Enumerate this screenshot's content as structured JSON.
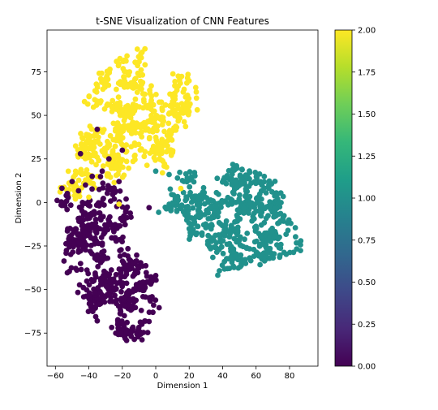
{
  "chart_data": {
    "type": "scatter",
    "title": "t-SNE Visualization of CNN Features",
    "xlabel": "Dimension 1",
    "ylabel": "Dimension 2",
    "xlim": [
      -65,
      97
    ],
    "ylim": [
      -94,
      99
    ],
    "xticks": [
      -60,
      -40,
      -20,
      0,
      20,
      40,
      60,
      80
    ],
    "yticks": [
      -75,
      -50,
      -25,
      0,
      25,
      50,
      75
    ],
    "grid": false,
    "legend": "none",
    "colormap": "viridis",
    "colorbar": {
      "range": [
        0.0,
        2.0
      ],
      "ticks": [
        "0.00",
        "0.25",
        "0.50",
        "0.75",
        "1.00",
        "1.25",
        "1.50",
        "1.75",
        "2.00"
      ]
    },
    "point_color_range": [
      0,
      2
    ],
    "clusters": [
      {
        "value": 2,
        "color": "#fde725",
        "count": 620,
        "anchor_points": [
          [
            -10,
            88
          ],
          [
            -20,
            82
          ],
          [
            -25,
            72
          ],
          [
            -10,
            70
          ],
          [
            -5,
            65
          ],
          [
            -15,
            62
          ],
          [
            -35,
            66
          ],
          [
            -40,
            58
          ],
          [
            -30,
            55
          ],
          [
            -22,
            52
          ],
          [
            -12,
            55
          ],
          [
            0,
            60
          ],
          [
            10,
            55
          ],
          [
            15,
            65
          ],
          [
            20,
            72
          ],
          [
            25,
            65
          ],
          [
            20,
            55
          ],
          [
            18,
            45
          ],
          [
            10,
            42
          ],
          [
            5,
            35
          ],
          [
            0,
            45
          ],
          [
            -5,
            38
          ],
          [
            -15,
            40
          ],
          [
            -25,
            42
          ],
          [
            -35,
            45
          ],
          [
            -42,
            38
          ],
          [
            -48,
            32
          ],
          [
            -45,
            22
          ],
          [
            -38,
            28
          ],
          [
            -30,
            32
          ],
          [
            -25,
            22
          ],
          [
            -20,
            18
          ],
          [
            -10,
            30
          ],
          [
            -5,
            22
          ],
          [
            5,
            20
          ],
          [
            10,
            28
          ],
          [
            -50,
            5
          ],
          [
            -55,
            8
          ],
          [
            -45,
            12
          ],
          [
            -40,
            15
          ],
          [
            -30,
            14
          ],
          [
            -22,
            14
          ],
          [
            -28,
            25
          ],
          [
            8,
            50
          ],
          [
            -30,
            78
          ],
          [
            -8,
            78
          ],
          [
            2,
            52
          ],
          [
            -18,
            30
          ]
        ]
      },
      {
        "value": 1,
        "color": "#21918c",
        "count": 560,
        "anchor_points": [
          [
            5,
            -5
          ],
          [
            10,
            5
          ],
          [
            15,
            12
          ],
          [
            20,
            5
          ],
          [
            25,
            -5
          ],
          [
            28,
            -15
          ],
          [
            22,
            -20
          ],
          [
            30,
            -22
          ],
          [
            35,
            -28
          ],
          [
            38,
            -38
          ],
          [
            45,
            -35
          ],
          [
            50,
            -28
          ],
          [
            48,
            -18
          ],
          [
            40,
            -12
          ],
          [
            35,
            -5
          ],
          [
            38,
            5
          ],
          [
            40,
            15
          ],
          [
            45,
            20
          ],
          [
            52,
            12
          ],
          [
            55,
            5
          ],
          [
            60,
            -5
          ],
          [
            58,
            -15
          ],
          [
            62,
            2
          ],
          [
            68,
            8
          ],
          [
            72,
            0
          ],
          [
            75,
            5
          ],
          [
            78,
            -10
          ],
          [
            82,
            -18
          ],
          [
            86,
            -25
          ],
          [
            75,
            -28
          ],
          [
            70,
            -20
          ],
          [
            68,
            -30
          ],
          [
            72,
            -35
          ],
          [
            62,
            -25
          ],
          [
            48,
            2
          ],
          [
            42,
            -22
          ],
          [
            28,
            2
          ],
          [
            55,
            18
          ],
          [
            65,
            12
          ],
          [
            18,
            -10
          ],
          [
            12,
            -2
          ],
          [
            50,
            -8
          ]
        ]
      },
      {
        "value": 0,
        "color": "#440154",
        "count": 560,
        "anchor_points": [
          [
            -55,
            5
          ],
          [
            -45,
            -2
          ],
          [
            -50,
            -10
          ],
          [
            -52,
            -20
          ],
          [
            -45,
            -28
          ],
          [
            -48,
            -38
          ],
          [
            -52,
            -42
          ],
          [
            -45,
            -50
          ],
          [
            -40,
            -45
          ],
          [
            -38,
            -55
          ],
          [
            -35,
            -65
          ],
          [
            -30,
            -58
          ],
          [
            -25,
            -50
          ],
          [
            -20,
            -45
          ],
          [
            -15,
            -52
          ],
          [
            -22,
            -62
          ],
          [
            -18,
            -70
          ],
          [
            -20,
            -78
          ],
          [
            -15,
            -82
          ],
          [
            -10,
            -75
          ],
          [
            -5,
            -70
          ],
          [
            -2,
            -62
          ],
          [
            -5,
            -55
          ],
          [
            -2,
            -45
          ],
          [
            -8,
            -40
          ],
          [
            -12,
            -35
          ],
          [
            -20,
            -30
          ],
          [
            -22,
            -22
          ],
          [
            -28,
            -20
          ],
          [
            -30,
            -10
          ],
          [
            -35,
            -5
          ],
          [
            -40,
            -15
          ],
          [
            -25,
            -5
          ],
          [
            -20,
            0
          ],
          [
            -25,
            8
          ],
          [
            -35,
            10
          ],
          [
            -30,
            -35
          ],
          [
            -10,
            -58
          ],
          [
            -28,
            -42
          ],
          [
            -38,
            -30
          ],
          [
            -18,
            -12
          ],
          [
            -42,
            2
          ]
        ]
      }
    ],
    "stray_points": [
      {
        "x": -35,
        "y": 42,
        "value": 0
      },
      {
        "x": -28,
        "y": 25,
        "value": 0
      },
      {
        "x": -20,
        "y": 30,
        "value": 0
      },
      {
        "x": -45,
        "y": 28,
        "value": 0
      },
      {
        "x": -38,
        "y": 15,
        "value": 0
      },
      {
        "x": -32,
        "y": 18,
        "value": 0
      },
      {
        "x": -42,
        "y": 10,
        "value": 0
      },
      {
        "x": -22,
        "y": 12,
        "value": 0
      },
      {
        "x": -50,
        "y": 12,
        "value": 0
      },
      {
        "x": -48,
        "y": 2,
        "value": 2
      },
      {
        "x": -40,
        "y": 3,
        "value": 2
      },
      {
        "x": -22,
        "y": -1,
        "value": 2
      },
      {
        "x": 0,
        "y": 18,
        "value": 1
      },
      {
        "x": 8,
        "y": 16,
        "value": 1
      },
      {
        "x": 13,
        "y": 14,
        "value": 1
      },
      {
        "x": 4,
        "y": 17,
        "value": 2
      },
      {
        "x": -4,
        "y": -3,
        "value": 0
      },
      {
        "x": 15,
        "y": 8,
        "value": 2
      }
    ]
  }
}
